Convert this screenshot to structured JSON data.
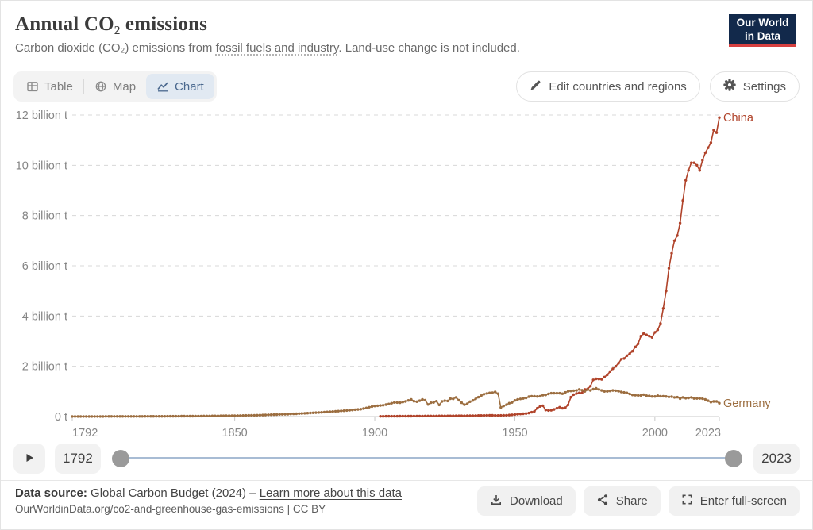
{
  "header": {
    "title": "Annual CO₂ emissions",
    "subtitle_pre": "Carbon dioxide (CO₂) emissions from ",
    "subtitle_link": "fossil fuels and industry",
    "subtitle_post": ". Land-use change is not included.",
    "logo_line1": "Our World",
    "logo_line2": "in Data"
  },
  "tabs": {
    "table": {
      "label": "Table"
    },
    "map": {
      "label": "Map"
    },
    "chart": {
      "label": "Chart",
      "active": true
    }
  },
  "controls": {
    "edit_label": "Edit countries and regions",
    "settings_label": "Settings"
  },
  "timeline": {
    "start_year": "1792",
    "end_year": "2023"
  },
  "footer": {
    "source_label": "Data source:",
    "source_text": " Global Carbon Budget (2024) ",
    "source_sep": "– ",
    "source_link": "Learn more about this data",
    "citation": "OurWorldinData.org/co2-and-greenhouse-gas-emissions | CC BY",
    "download_label": "Download",
    "share_label": "Share",
    "fullscreen_label": "Enter full-screen"
  },
  "colors": {
    "brand_navy": "#12294b",
    "brand_red": "#d64040",
    "active_tab_bg": "#e1e9f2",
    "active_tab_text": "#4a688e",
    "gridline": "#d8d8d8",
    "axis": "#c9c9c9",
    "axis_text": "#858585",
    "slider_track": "#a8bcd4",
    "slider_handle": "#9a9a9a"
  },
  "chart_data": {
    "type": "line",
    "title": "Annual CO₂ emissions",
    "unit": "tonnes",
    "xlim": [
      1792,
      2023
    ],
    "ylim": [
      0,
      12
    ],
    "grid": "dashed-horizontal",
    "legend_position": "end-of-line-labels",
    "x_ticks": [
      "1792",
      "1850",
      "1900",
      "1950",
      "2000",
      "2023"
    ],
    "x_tick_values": [
      1792,
      1850,
      1900,
      1950,
      2000,
      2023
    ],
    "y_ticks": [
      {
        "value": 0,
        "label": "0 t"
      },
      {
        "value": 2,
        "label": "2 billion t"
      },
      {
        "value": 4,
        "label": "4 billion t"
      },
      {
        "value": 6,
        "label": "6 billion t"
      },
      {
        "value": 8,
        "label": "8 billion t"
      },
      {
        "value": 10,
        "label": "10 billion t"
      },
      {
        "value": 12,
        "label": "12 billion t"
      }
    ],
    "series": [
      {
        "name": "China",
        "color": "#b0432a",
        "points": [
          [
            1902,
            0.01
          ],
          [
            1905,
            0.012
          ],
          [
            1908,
            0.014
          ],
          [
            1911,
            0.016
          ],
          [
            1914,
            0.018
          ],
          [
            1917,
            0.02
          ],
          [
            1920,
            0.022
          ],
          [
            1923,
            0.024
          ],
          [
            1926,
            0.026
          ],
          [
            1929,
            0.028
          ],
          [
            1932,
            0.03
          ],
          [
            1935,
            0.035
          ],
          [
            1938,
            0.042
          ],
          [
            1941,
            0.05
          ],
          [
            1944,
            0.04
          ],
          [
            1947,
            0.05
          ],
          [
            1950,
            0.08
          ],
          [
            1951,
            0.09
          ],
          [
            1952,
            0.1
          ],
          [
            1953,
            0.11
          ],
          [
            1954,
            0.12
          ],
          [
            1955,
            0.14
          ],
          [
            1956,
            0.17
          ],
          [
            1957,
            0.21
          ],
          [
            1958,
            0.33
          ],
          [
            1959,
            0.4
          ],
          [
            1960,
            0.43
          ],
          [
            1961,
            0.26
          ],
          [
            1962,
            0.24
          ],
          [
            1963,
            0.25
          ],
          [
            1964,
            0.28
          ],
          [
            1965,
            0.33
          ],
          [
            1966,
            0.37
          ],
          [
            1967,
            0.33
          ],
          [
            1968,
            0.35
          ],
          [
            1969,
            0.46
          ],
          [
            1970,
            0.77
          ],
          [
            1971,
            0.87
          ],
          [
            1972,
            0.92
          ],
          [
            1973,
            0.94
          ],
          [
            1974,
            0.94
          ],
          [
            1975,
            1.08
          ],
          [
            1976,
            1.1
          ],
          [
            1977,
            1.21
          ],
          [
            1978,
            1.46
          ],
          [
            1979,
            1.5
          ],
          [
            1980,
            1.49
          ],
          [
            1981,
            1.48
          ],
          [
            1982,
            1.57
          ],
          [
            1983,
            1.66
          ],
          [
            1984,
            1.79
          ],
          [
            1985,
            1.9
          ],
          [
            1986,
            2.0
          ],
          [
            1987,
            2.12
          ],
          [
            1988,
            2.28
          ],
          [
            1989,
            2.31
          ],
          [
            1990,
            2.42
          ],
          [
            1991,
            2.5
          ],
          [
            1992,
            2.6
          ],
          [
            1993,
            2.77
          ],
          [
            1994,
            2.9
          ],
          [
            1995,
            3.2
          ],
          [
            1996,
            3.3
          ],
          [
            1997,
            3.25
          ],
          [
            1998,
            3.2
          ],
          [
            1999,
            3.15
          ],
          [
            2000,
            3.35
          ],
          [
            2001,
            3.45
          ],
          [
            2002,
            3.7
          ],
          [
            2003,
            4.3
          ],
          [
            2004,
            5.0
          ],
          [
            2005,
            5.9
          ],
          [
            2006,
            6.5
          ],
          [
            2007,
            7.0
          ],
          [
            2008,
            7.2
          ],
          [
            2009,
            7.7
          ],
          [
            2010,
            8.6
          ],
          [
            2011,
            9.4
          ],
          [
            2012,
            9.8
          ],
          [
            2013,
            10.1
          ],
          [
            2014,
            10.1
          ],
          [
            2015,
            10.0
          ],
          [
            2016,
            9.8
          ],
          [
            2017,
            10.2
          ],
          [
            2018,
            10.5
          ],
          [
            2019,
            10.7
          ],
          [
            2020,
            10.9
          ],
          [
            2021,
            11.4
          ],
          [
            2022,
            11.3
          ],
          [
            2023,
            11.9
          ]
        ]
      },
      {
        "name": "Germany",
        "color": "#9c6e40",
        "points": [
          [
            1792,
            0.003
          ],
          [
            1795,
            0.003
          ],
          [
            1800,
            0.004
          ],
          [
            1805,
            0.005
          ],
          [
            1810,
            0.006
          ],
          [
            1815,
            0.007
          ],
          [
            1820,
            0.009
          ],
          [
            1825,
            0.011
          ],
          [
            1830,
            0.014
          ],
          [
            1835,
            0.017
          ],
          [
            1840,
            0.022
          ],
          [
            1845,
            0.028
          ],
          [
            1850,
            0.035
          ],
          [
            1855,
            0.046
          ],
          [
            1860,
            0.06
          ],
          [
            1865,
            0.08
          ],
          [
            1870,
            0.1
          ],
          [
            1875,
            0.13
          ],
          [
            1880,
            0.16
          ],
          [
            1885,
            0.2
          ],
          [
            1890,
            0.24
          ],
          [
            1895,
            0.29
          ],
          [
            1900,
            0.42
          ],
          [
            1903,
            0.45
          ],
          [
            1905,
            0.5
          ],
          [
            1907,
            0.56
          ],
          [
            1909,
            0.55
          ],
          [
            1911,
            0.6
          ],
          [
            1913,
            0.68
          ],
          [
            1914,
            0.61
          ],
          [
            1915,
            0.59
          ],
          [
            1916,
            0.63
          ],
          [
            1917,
            0.68
          ],
          [
            1918,
            0.65
          ],
          [
            1919,
            0.48
          ],
          [
            1920,
            0.55
          ],
          [
            1921,
            0.56
          ],
          [
            1922,
            0.61
          ],
          [
            1923,
            0.46
          ],
          [
            1924,
            0.6
          ],
          [
            1925,
            0.63
          ],
          [
            1926,
            0.62
          ],
          [
            1927,
            0.71
          ],
          [
            1928,
            0.7
          ],
          [
            1929,
            0.76
          ],
          [
            1930,
            0.65
          ],
          [
            1931,
            0.55
          ],
          [
            1932,
            0.47
          ],
          [
            1933,
            0.51
          ],
          [
            1934,
            0.59
          ],
          [
            1935,
            0.64
          ],
          [
            1936,
            0.7
          ],
          [
            1937,
            0.77
          ],
          [
            1938,
            0.83
          ],
          [
            1939,
            0.89
          ],
          [
            1940,
            0.92
          ],
          [
            1941,
            0.94
          ],
          [
            1942,
            0.95
          ],
          [
            1943,
            0.98
          ],
          [
            1944,
            0.91
          ],
          [
            1945,
            0.36
          ],
          [
            1946,
            0.42
          ],
          [
            1947,
            0.47
          ],
          [
            1948,
            0.53
          ],
          [
            1949,
            0.56
          ],
          [
            1950,
            0.64
          ],
          [
            1951,
            0.68
          ],
          [
            1952,
            0.7
          ],
          [
            1953,
            0.72
          ],
          [
            1954,
            0.74
          ],
          [
            1955,
            0.79
          ],
          [
            1956,
            0.81
          ],
          [
            1957,
            0.81
          ],
          [
            1958,
            0.8
          ],
          [
            1959,
            0.81
          ],
          [
            1960,
            0.85
          ],
          [
            1961,
            0.86
          ],
          [
            1962,
            0.9
          ],
          [
            1963,
            0.93
          ],
          [
            1964,
            0.93
          ],
          [
            1965,
            0.93
          ],
          [
            1966,
            0.93
          ],
          [
            1967,
            0.91
          ],
          [
            1968,
            0.96
          ],
          [
            1969,
            1.0
          ],
          [
            1970,
            1.02
          ],
          [
            1971,
            1.03
          ],
          [
            1972,
            1.04
          ],
          [
            1973,
            1.08
          ],
          [
            1974,
            1.05
          ],
          [
            1975,
            1.0
          ],
          [
            1976,
            1.07
          ],
          [
            1977,
            1.04
          ],
          [
            1978,
            1.09
          ],
          [
            1979,
            1.12
          ],
          [
            1980,
            1.08
          ],
          [
            1981,
            1.04
          ],
          [
            1982,
            1.0
          ],
          [
            1983,
            1.0
          ],
          [
            1984,
            1.02
          ],
          [
            1985,
            1.04
          ],
          [
            1986,
            1.03
          ],
          [
            1987,
            1.01
          ],
          [
            1988,
            0.98
          ],
          [
            1989,
            0.96
          ],
          [
            1990,
            0.94
          ],
          [
            1991,
            0.9
          ],
          [
            1992,
            0.86
          ],
          [
            1993,
            0.85
          ],
          [
            1994,
            0.84
          ],
          [
            1995,
            0.84
          ],
          [
            1996,
            0.87
          ],
          [
            1997,
            0.83
          ],
          [
            1998,
            0.82
          ],
          [
            1999,
            0.8
          ],
          [
            2000,
            0.8
          ],
          [
            2001,
            0.83
          ],
          [
            2002,
            0.81
          ],
          [
            2003,
            0.81
          ],
          [
            2004,
            0.8
          ],
          [
            2005,
            0.78
          ],
          [
            2006,
            0.79
          ],
          [
            2007,
            0.76
          ],
          [
            2008,
            0.77
          ],
          [
            2009,
            0.71
          ],
          [
            2010,
            0.76
          ],
          [
            2011,
            0.73
          ],
          [
            2012,
            0.74
          ],
          [
            2013,
            0.76
          ],
          [
            2014,
            0.72
          ],
          [
            2015,
            0.72
          ],
          [
            2016,
            0.72
          ],
          [
            2017,
            0.71
          ],
          [
            2018,
            0.68
          ],
          [
            2019,
            0.63
          ],
          [
            2020,
            0.57
          ],
          [
            2021,
            0.6
          ],
          [
            2022,
            0.6
          ],
          [
            2023,
            0.53
          ]
        ]
      }
    ]
  }
}
